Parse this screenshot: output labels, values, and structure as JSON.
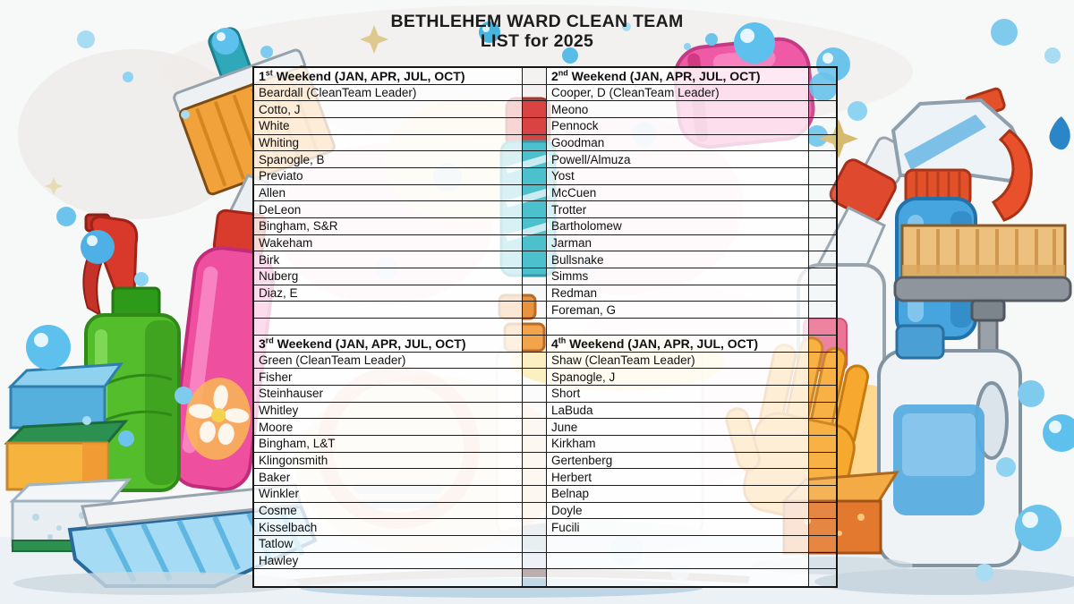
{
  "title": {
    "line1": "BETHLEHEM WARD CLEAN TEAM",
    "line2": "LIST for 2025"
  },
  "table": {
    "row_count": 31,
    "quadrants": [
      {
        "position": "top-left",
        "ordinal": "1",
        "ordinal_suffix": "st",
        "header_text": "Weekend (JAN, APR, JUL, OCT)",
        "members": [
          "Beardall (CleanTeam Leader)",
          "Cotto, J",
          "White",
          "Whiting",
          "Spanogle, B",
          "Previato",
          "Allen",
          "DeLeon",
          "Bingham, S&R",
          "Wakeham",
          "Birk",
          "Nuberg",
          "Diaz, E"
        ],
        "trailing_empty_rows": 2
      },
      {
        "position": "top-right",
        "ordinal": "2",
        "ordinal_suffix": "nd",
        "header_text": "Weekend (JAN, APR, JUL, OCT)",
        "members": [
          "Cooper, D (CleanTeam Leader)",
          "Meono",
          "Pennock",
          "Goodman",
          "Powell/Almuza",
          "Yost",
          "McCuen",
          "Trotter",
          "Bartholomew",
          "Jarman",
          "Bullsnake",
          "Simms",
          "Redman",
          "Foreman, G"
        ],
        "trailing_empty_rows": 1
      },
      {
        "position": "bottom-left",
        "ordinal": "3",
        "ordinal_suffix": "rd",
        "header_text": "Weekend (JAN, APR, JUL, OCT)",
        "members": [
          "Green (CleanTeam Leader)",
          "Fisher",
          "Steinhauser",
          "Whitley",
          "Moore",
          "Bingham, L&T",
          "Klingonsmith",
          "Baker",
          "Winkler",
          "Cosme",
          "Kisselbach",
          "Tatlow",
          "Hawley"
        ],
        "trailing_empty_rows": 1
      },
      {
        "position": "bottom-right",
        "ordinal": "4",
        "ordinal_suffix": "th",
        "header_text": "Weekend (JAN, APR, JUL, OCT)",
        "members": [
          "Shaw (CleanTeam Leader)",
          "Spanogle, J",
          "Short",
          "LaBuda",
          "June",
          "Kirkham",
          "Gertenberg",
          "Herbert",
          "Belnap",
          "Doyle",
          "Fucili"
        ],
        "trailing_empty_rows": 3
      }
    ]
  },
  "palette": {
    "table_border": "#1d1d1d",
    "title_text": "#1c1c1c",
    "cell_text": "#101010",
    "bubble_blue": "#5ec0ec",
    "spray_green": "#54bd2c",
    "bottle_pink": "#ef4f9f",
    "accent_red": "#d8392b",
    "accent_orange": "#f0a43c",
    "jug_blue": "#57ace0"
  }
}
